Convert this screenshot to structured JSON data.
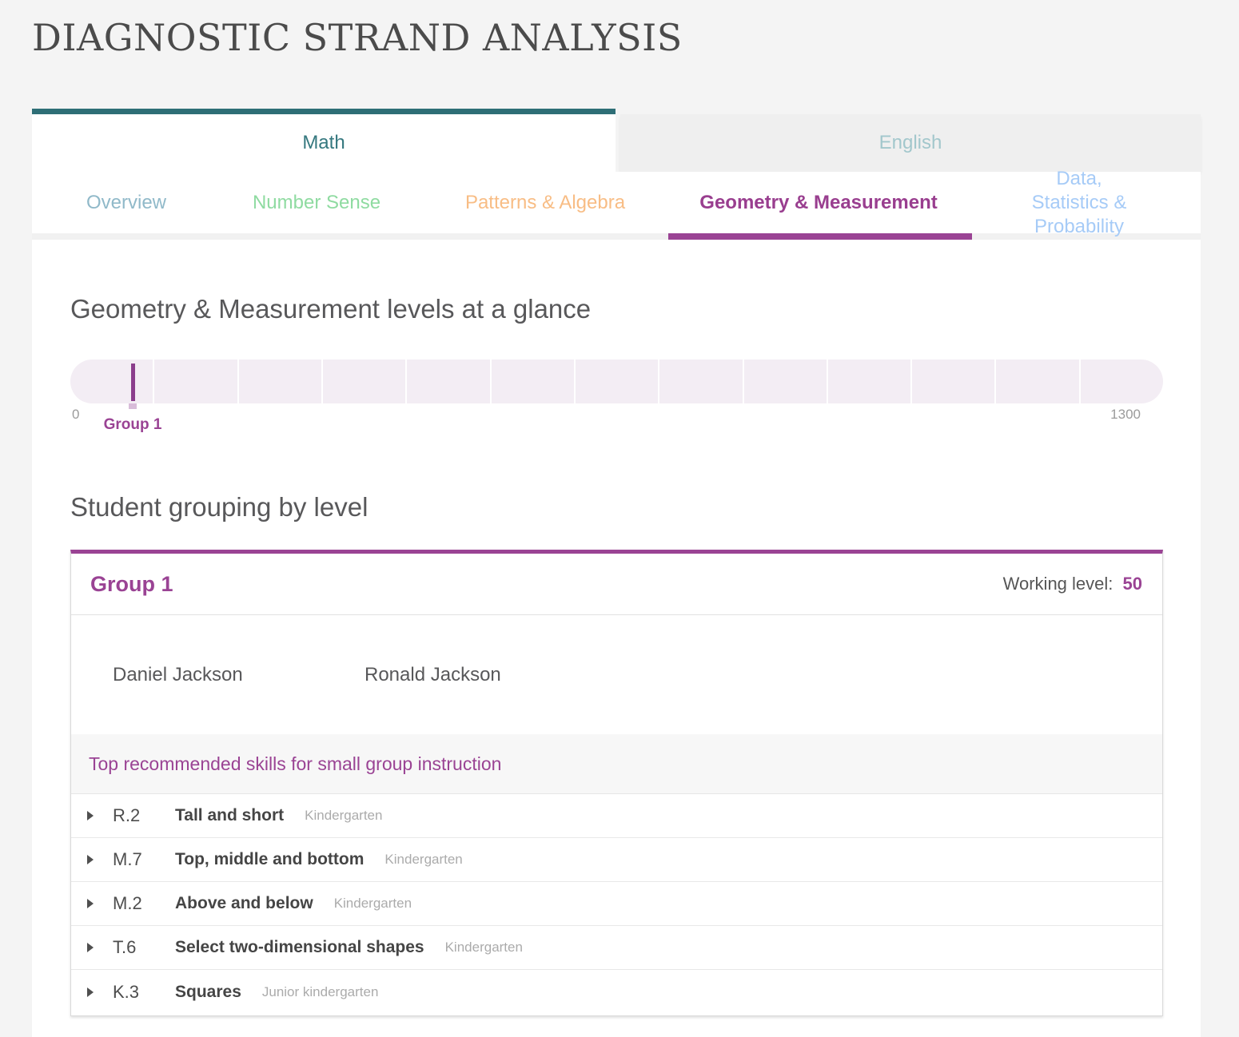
{
  "page_title": "DIAGNOSTIC STRAND ANALYSIS",
  "subject_tabs": [
    {
      "label": "Math",
      "active": true
    },
    {
      "label": "English",
      "active": false
    }
  ],
  "strand_tabs": [
    {
      "label": "Overview",
      "color": "#90b9c9",
      "active": false
    },
    {
      "label": "Number Sense",
      "color": "#8fdba1",
      "active": false
    },
    {
      "label": "Patterns & Algebra",
      "color": "#f8bd85",
      "active": false
    },
    {
      "label": "Geometry & Measurement",
      "color": "#993e8f",
      "active": true
    },
    {
      "label": "Data, Statistics & Probability",
      "color": "#a6cbf7",
      "active": false
    }
  ],
  "levels_at_a_glance": {
    "heading": "Geometry & Measurement levels at a glance",
    "axis_min": "0",
    "axis_max": "1300",
    "segment_count": 13,
    "groups": [
      {
        "label": "Group 1",
        "level": 50
      }
    ]
  },
  "student_grouping": {
    "heading": "Student grouping by level",
    "groups": [
      {
        "name": "Group 1",
        "working_level_label": "Working level:",
        "working_level_value": "50",
        "students": [
          "Daniel Jackson",
          "Ronald Jackson"
        ],
        "skills_heading": "Top recommended skills for small group instruction",
        "skills": [
          {
            "code": "R.2",
            "name": "Tall and short",
            "grade": "Kindergarten"
          },
          {
            "code": "M.7",
            "name": "Top, middle and bottom",
            "grade": "Kindergarten"
          },
          {
            "code": "M.2",
            "name": "Above and below",
            "grade": "Kindergarten"
          },
          {
            "code": "T.6",
            "name": "Select two-dimensional shapes",
            "grade": "Kindergarten"
          },
          {
            "code": "K.3",
            "name": "Squares",
            "grade": "Junior kindergarten"
          }
        ]
      }
    ]
  },
  "colors": {
    "accent_purple": "#9a4394",
    "teal_bar": "#2e6e76",
    "math_text": "#35787f",
    "english_text": "#a2c7cc",
    "level_bar_background": "#f3edf4",
    "level_marker": "#8b3e8c",
    "page_background": "#f4f4f4"
  }
}
